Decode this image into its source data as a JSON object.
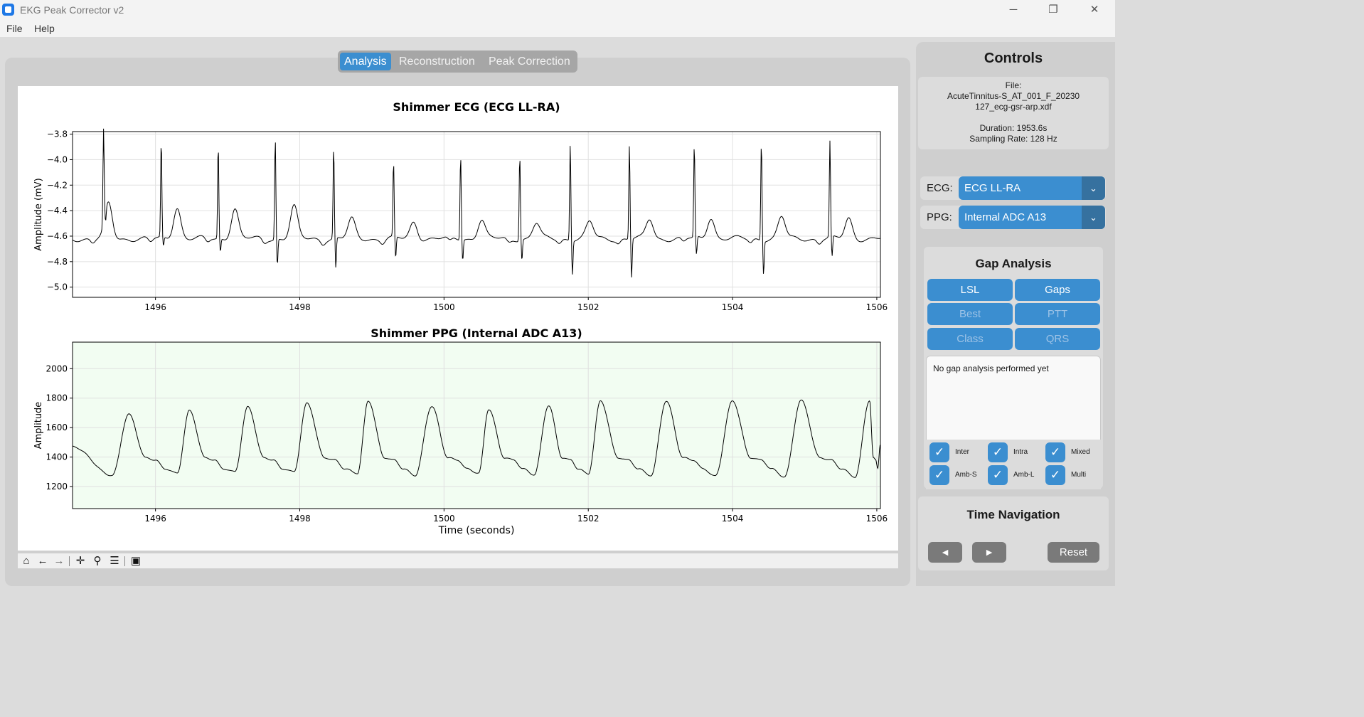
{
  "window": {
    "title": "EKG Peak Corrector v2",
    "minimize_icon": "minimize-icon",
    "maximize_icon": "restore-icon",
    "close_icon": "close-icon"
  },
  "menu": {
    "file": "File",
    "help": "Help"
  },
  "tabs": [
    {
      "label": "Analysis",
      "active": true
    },
    {
      "label": "Reconstruction",
      "active": false
    },
    {
      "label": "Peak Correction",
      "active": false
    }
  ],
  "controls": {
    "title": "Controls",
    "file_label": "File:",
    "file_name_line1": "AcuteTinnitus-S_AT_001_F_20230",
    "file_name_line2": "127_ecg-gsr-arp.xdf",
    "duration": "Duration: 1953.6s",
    "sampling_rate": "Sampling Rate: 128 Hz",
    "ecg_label": "ECG:",
    "ecg_value": "ECG LL-RA",
    "ppg_label": "PPG:",
    "ppg_value": "Internal ADC A13"
  },
  "gap_analysis": {
    "title": "Gap Analysis",
    "buttons": [
      {
        "label": "LSL",
        "enabled": true
      },
      {
        "label": "Gaps",
        "enabled": true
      },
      {
        "label": "Best",
        "enabled": false
      },
      {
        "label": "PTT",
        "enabled": false
      },
      {
        "label": "Class",
        "enabled": false
      },
      {
        "label": "QRS",
        "enabled": false
      }
    ],
    "result_text": "No gap analysis performed yet",
    "checkboxes": [
      {
        "label": "Inter",
        "checked": true
      },
      {
        "label": "Intra",
        "checked": true
      },
      {
        "label": "Mixed",
        "checked": true
      },
      {
        "label": "Amb-S",
        "checked": true
      },
      {
        "label": "Amb-L",
        "checked": true
      },
      {
        "label": "Multi",
        "checked": true
      }
    ]
  },
  "time_navigation": {
    "title": "Time Navigation",
    "prev": "◄",
    "next": "►",
    "reset": "Reset"
  },
  "toolbar_icons": [
    "home-icon",
    "back-icon",
    "forward-icon",
    "pan-icon",
    "zoom-icon",
    "configure-icon",
    "save-icon"
  ],
  "colors": {
    "accent": "#3b8ed0",
    "accent_dark": "#36719f",
    "ppg_bg": "#f2fdf2",
    "nav_button": "#7a7a7a"
  },
  "chart_data": [
    {
      "type": "line",
      "title": "Shimmer ECG (ECG LL-RA)",
      "xlabel": "",
      "ylabel": "Amplitude (mV)",
      "xlim": [
        1494.85,
        1506.05
      ],
      "ylim": [
        -5.08,
        -3.78
      ],
      "xticks": [
        1496,
        1498,
        1500,
        1502,
        1504,
        1506
      ],
      "yticks": [
        -3.8,
        -4.0,
        -4.2,
        -4.4,
        -4.6,
        -4.8,
        -5.0
      ],
      "grid": true,
      "r_peaks": [
        {
          "t": 1495.28,
          "r": -3.88,
          "s": -4.7
        },
        {
          "t": 1496.08,
          "r": -3.86,
          "s": -4.69
        },
        {
          "t": 1496.87,
          "r": -3.88,
          "s": -4.72
        },
        {
          "t": 1497.66,
          "r": -3.82,
          "s": -4.82
        },
        {
          "t": 1498.47,
          "r": -3.9,
          "s": -4.86
        },
        {
          "t": 1499.3,
          "r": -4.03,
          "s": -4.79
        },
        {
          "t": 1500.23,
          "r": -3.95,
          "s": -4.78
        },
        {
          "t": 1501.05,
          "r": -3.94,
          "s": -4.78
        },
        {
          "t": 1501.75,
          "r": -3.86,
          "s": -4.88
        },
        {
          "t": 1502.57,
          "r": -3.88,
          "s": -4.92
        },
        {
          "t": 1503.47,
          "r": -3.89,
          "s": -4.76
        },
        {
          "t": 1504.4,
          "r": -3.84,
          "s": -4.88
        },
        {
          "t": 1505.35,
          "r": -3.87,
          "s": -4.78
        }
      ],
      "t_waves": [
        {
          "t": 1495.35,
          "v": -4.35
        },
        {
          "t": 1496.3,
          "v": -4.37
        },
        {
          "t": 1497.1,
          "v": -4.38
        },
        {
          "t": 1497.92,
          "v": -4.37
        },
        {
          "t": 1498.72,
          "v": -4.47
        },
        {
          "t": 1499.58,
          "v": -4.49
        },
        {
          "t": 1500.52,
          "v": -4.47
        },
        {
          "t": 1501.28,
          "v": -4.5
        },
        {
          "t": 1502.02,
          "v": -4.49
        },
        {
          "t": 1502.85,
          "v": -4.47
        },
        {
          "t": 1503.7,
          "v": -4.45
        },
        {
          "t": 1504.68,
          "v": -4.45
        },
        {
          "t": 1505.61,
          "v": -4.46
        }
      ],
      "baseline": -4.62
    },
    {
      "type": "line",
      "title": "Shimmer PPG (Internal ADC A13)",
      "xlabel": "Time (seconds)",
      "ylabel": "Amplitude",
      "xlim": [
        1494.85,
        1506.05
      ],
      "ylim": [
        1050,
        2180
      ],
      "xticks": [
        1496,
        1498,
        1500,
        1502,
        1504,
        1506
      ],
      "yticks": [
        1200,
        1400,
        1600,
        1800,
        2000
      ],
      "grid": true,
      "background": "#f2fdf2",
      "pulse_peaks": [
        {
          "t": 1495.63,
          "v": 1690
        },
        {
          "t": 1496.47,
          "v": 1715
        },
        {
          "t": 1497.28,
          "v": 1740
        },
        {
          "t": 1498.1,
          "v": 1765
        },
        {
          "t": 1498.95,
          "v": 1780
        },
        {
          "t": 1499.83,
          "v": 1745
        },
        {
          "t": 1500.62,
          "v": 1725
        },
        {
          "t": 1501.45,
          "v": 1750
        },
        {
          "t": 1502.17,
          "v": 1780
        },
        {
          "t": 1503.08,
          "v": 1780
        },
        {
          "t": 1504.0,
          "v": 1780
        },
        {
          "t": 1504.95,
          "v": 1785
        },
        {
          "t": 1505.9,
          "v": 1785
        }
      ],
      "pulse_troughs": [
        {
          "t": 1495.4,
          "v": 1275
        },
        {
          "t": 1496.3,
          "v": 1290
        },
        {
          "t": 1497.1,
          "v": 1300
        },
        {
          "t": 1497.92,
          "v": 1300
        },
        {
          "t": 1498.8,
          "v": 1290
        },
        {
          "t": 1499.6,
          "v": 1275
        },
        {
          "t": 1500.48,
          "v": 1290
        },
        {
          "t": 1501.25,
          "v": 1280
        },
        {
          "t": 1502.0,
          "v": 1285
        },
        {
          "t": 1502.87,
          "v": 1275
        },
        {
          "t": 1503.76,
          "v": 1270
        },
        {
          "t": 1504.72,
          "v": 1265
        },
        {
          "t": 1505.7,
          "v": 1265
        }
      ]
    }
  ]
}
